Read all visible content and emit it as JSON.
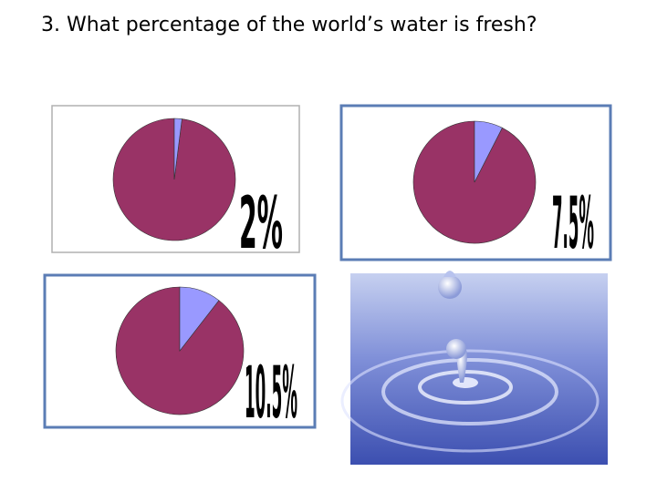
{
  "question": "3. What percentage of the world’s water is fresh?",
  "options": [
    {
      "label": "2%",
      "value": 2
    },
    {
      "label": "7.5%",
      "value": 7.5
    },
    {
      "label": "10.5%",
      "value": 10.5
    }
  ]
}
